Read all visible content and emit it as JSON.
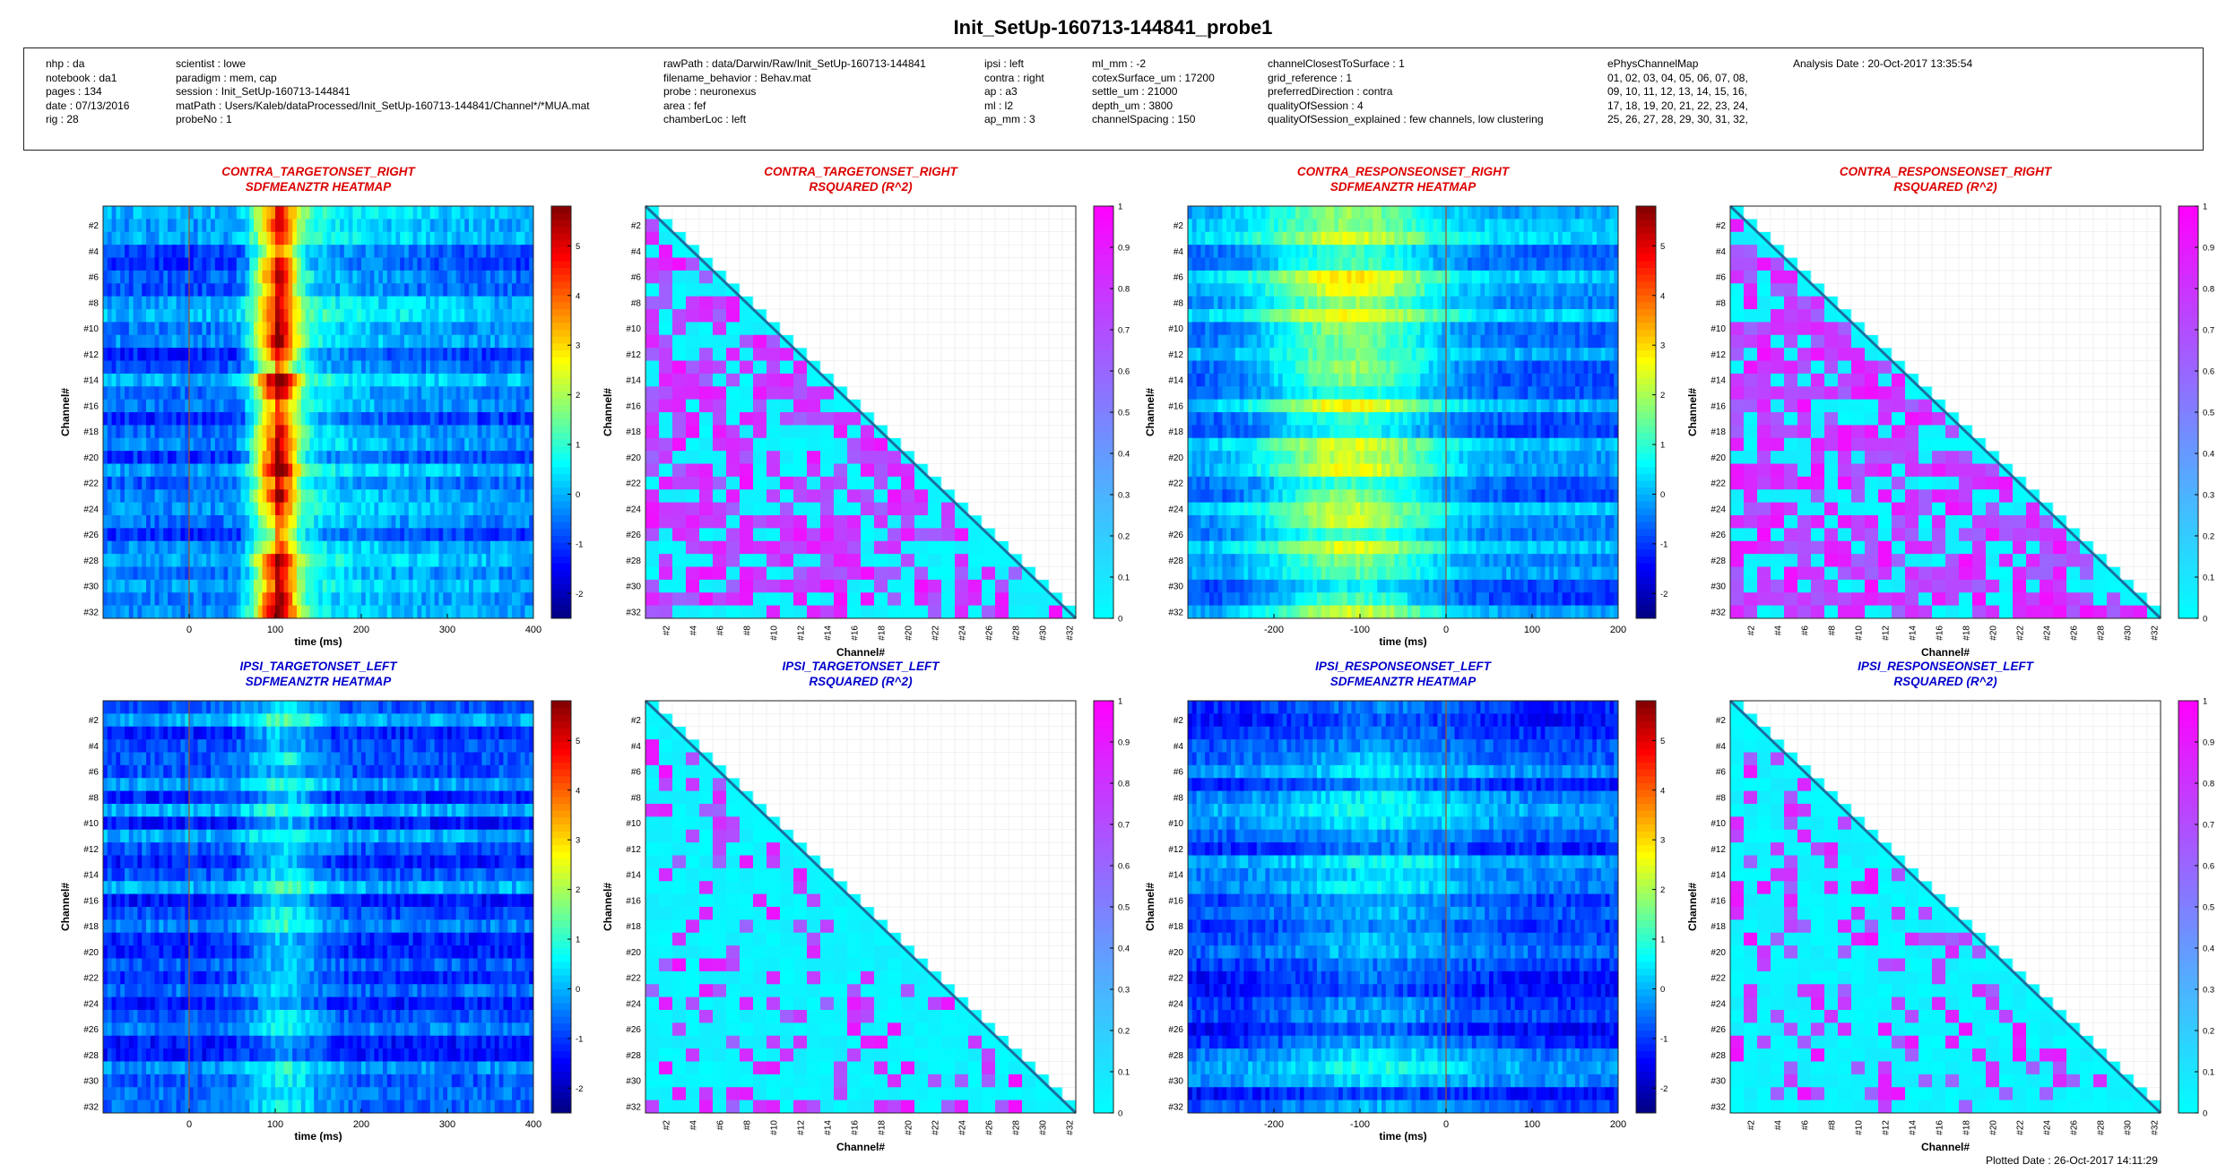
{
  "title": "Init_SetUp-160713-144841_probe1",
  "info": {
    "col1": [
      "nhp : da",
      "notebook : da1",
      "pages : 134",
      "date : 07/13/2016",
      "rig : 28"
    ],
    "col2": [
      "scientist : lowe",
      "paradigm : mem, cap",
      "session : Init_SetUp-160713-144841",
      "matPath : Users/Kaleb/dataProcessed/Init_SetUp-160713-144841/Channel*/*MUA.mat",
      "probeNo : 1"
    ],
    "col3": [
      "rawPath : data/Darwin/Raw/Init_SetUp-160713-144841",
      "filename_behavior : Behav.mat",
      "probe : neuronexus",
      "area : fef",
      "chamberLoc : left"
    ],
    "col4": [
      "ipsi : left",
      "contra : right",
      "ap : a3",
      "ml : l2",
      "ap_mm : 3"
    ],
    "col5": [
      "ml_mm : -2",
      "cotexSurface_um : 17200",
      "settle_um : 21000",
      "depth_um : 3800",
      "channelSpacing : 150"
    ],
    "col6": [
      "channelClosestToSurface : 1",
      "grid_reference : 1",
      "preferredDirection : contra",
      "qualityOfSession : 4",
      "qualityOfSession_explained : few channels, low clustering"
    ],
    "col7": [
      "ePhysChannelMap",
      "01, 02, 03, 04, 05, 06, 07, 08,",
      "09, 10, 11, 12, 13, 14, 15, 16,",
      "17, 18, 19, 20, 21, 22, 23, 24,",
      "25, 26, 27, 28, 29, 30, 31, 32,"
    ],
    "col8": [
      "Analysis Date : 20-Oct-2017 13:35:54"
    ]
  },
  "plotted_date": "Plotted Date : 26-Oct-2017 14:11:29",
  "colors": {
    "contra_title": "#dd0000",
    "ipsi_title": "#0000cc",
    "rsq_low": "#00ffff",
    "rsq_high": "#ff00ff"
  },
  "chart_data": [
    {
      "id": "p1",
      "type": "heatmap",
      "title": [
        "CONTRA_TARGETONSET_RIGHT",
        "SDFMEANZTR HEATMAP"
      ],
      "group": "contra",
      "xlabel": "time (ms)",
      "ylabel": "Channel#",
      "xlim": [
        -100,
        400
      ],
      "xticks": [
        0,
        100,
        200,
        300,
        400
      ],
      "onset_line_x": 0,
      "peak_x": 100,
      "profile": "target-strong",
      "yticklabels": [
        "#2",
        "#4",
        "#6",
        "#8",
        "#10",
        "#12",
        "#14",
        "#16",
        "#18",
        "#20",
        "#22",
        "#24",
        "#26",
        "#28",
        "#30",
        "#32"
      ],
      "colorbar": {
        "ticks": [
          -2,
          -1,
          0,
          1,
          2,
          3,
          4,
          5
        ],
        "range": [
          -2.5,
          5.8
        ]
      }
    },
    {
      "id": "p2",
      "type": "heatmap",
      "title": [
        "CONTRA_TARGETONSET_RIGHT",
        "RSQUARED (R^2)"
      ],
      "group": "contra",
      "xlabel": "Channel#",
      "ylabel": "Channel#",
      "matrix": "rsq",
      "density": 0.6,
      "yticklabels": [
        "#2",
        "#4",
        "#6",
        "#8",
        "#10",
        "#12",
        "#14",
        "#16",
        "#18",
        "#20",
        "#22",
        "#24",
        "#26",
        "#28",
        "#30",
        "#32"
      ],
      "xticklabels": [
        "#2",
        "#4",
        "#6",
        "#8",
        "#10",
        "#12",
        "#14",
        "#16",
        "#18",
        "#20",
        "#22",
        "#24",
        "#26",
        "#28",
        "#30",
        "#32"
      ],
      "colorbar": {
        "ticks": [
          0,
          0.1,
          0.2,
          0.3,
          0.4,
          0.5,
          0.6,
          0.7,
          0.8,
          0.9,
          1
        ],
        "range": [
          0,
          1
        ]
      }
    },
    {
      "id": "p3",
      "type": "heatmap",
      "title": [
        "CONTRA_RESPONSEONSET_RIGHT",
        "SDFMEANZTR HEATMAP"
      ],
      "group": "contra",
      "xlabel": "time (ms)",
      "ylabel": "Channel#",
      "xlim": [
        -300,
        200
      ],
      "xticks": [
        -200,
        -100,
        0,
        100,
        200
      ],
      "onset_line_x": 0,
      "peak_x": -110,
      "profile": "response-broad",
      "yticklabels": [
        "#2",
        "#4",
        "#6",
        "#8",
        "#10",
        "#12",
        "#14",
        "#16",
        "#18",
        "#20",
        "#22",
        "#24",
        "#26",
        "#28",
        "#30",
        "#32"
      ],
      "colorbar": {
        "ticks": [
          -2,
          -1,
          0,
          1,
          2,
          3,
          4,
          5
        ],
        "range": [
          -2.5,
          5.8
        ]
      }
    },
    {
      "id": "p4",
      "type": "heatmap",
      "title": [
        "CONTRA_RESPONSEONSET_RIGHT",
        "RSQUARED (R^2)"
      ],
      "group": "contra",
      "xlabel": "Channel#",
      "ylabel": "Channel#",
      "matrix": "rsq",
      "density": 0.7,
      "yticklabels": [
        "#2",
        "#4",
        "#6",
        "#8",
        "#10",
        "#12",
        "#14",
        "#16",
        "#18",
        "#20",
        "#22",
        "#24",
        "#26",
        "#28",
        "#30",
        "#32"
      ],
      "xticklabels": [
        "#2",
        "#4",
        "#6",
        "#8",
        "#10",
        "#12",
        "#14",
        "#16",
        "#18",
        "#20",
        "#22",
        "#24",
        "#26",
        "#28",
        "#30",
        "#32"
      ],
      "colorbar": {
        "ticks": [
          0,
          0.1,
          0.2,
          0.3,
          0.4,
          0.5,
          0.6,
          0.7,
          0.8,
          0.9,
          1
        ],
        "range": [
          0,
          1
        ]
      }
    },
    {
      "id": "p5",
      "type": "heatmap",
      "title": [
        "IPSI_TARGETONSET_LEFT",
        "SDFMEANZTR HEATMAP"
      ],
      "group": "ipsi",
      "xlabel": "time (ms)",
      "ylabel": "Channel#",
      "xlim": [
        -100,
        400
      ],
      "xticks": [
        0,
        100,
        200,
        300,
        400
      ],
      "onset_line_x": 0,
      "peak_x": 110,
      "profile": "weak",
      "yticklabels": [
        "#2",
        "#4",
        "#6",
        "#8",
        "#10",
        "#12",
        "#14",
        "#16",
        "#18",
        "#20",
        "#22",
        "#24",
        "#26",
        "#28",
        "#30",
        "#32"
      ],
      "colorbar": {
        "ticks": [
          -2,
          -1,
          0,
          1,
          2,
          3,
          4,
          5
        ],
        "range": [
          -2.5,
          5.8
        ]
      }
    },
    {
      "id": "p6",
      "type": "heatmap",
      "title": [
        "IPSI_TARGETONSET_LEFT",
        "RSQUARED (R^2)"
      ],
      "group": "ipsi",
      "xlabel": "Channel#",
      "ylabel": "Channel#",
      "matrix": "rsq",
      "density": 0.2,
      "yticklabels": [
        "#2",
        "#4",
        "#6",
        "#8",
        "#10",
        "#12",
        "#14",
        "#16",
        "#18",
        "#20",
        "#22",
        "#24",
        "#26",
        "#28",
        "#30",
        "#32"
      ],
      "xticklabels": [
        "#2",
        "#4",
        "#6",
        "#8",
        "#10",
        "#12",
        "#14",
        "#16",
        "#18",
        "#20",
        "#22",
        "#24",
        "#26",
        "#28",
        "#30",
        "#32"
      ],
      "colorbar": {
        "ticks": [
          0,
          0.1,
          0.2,
          0.3,
          0.4,
          0.5,
          0.6,
          0.7,
          0.8,
          0.9,
          1
        ],
        "range": [
          0,
          1
        ]
      }
    },
    {
      "id": "p7",
      "type": "heatmap",
      "title": [
        "IPSI_RESPONSEONSET_LEFT",
        "SDFMEANZTR HEATMAP"
      ],
      "group": "ipsi",
      "xlabel": "time (ms)",
      "ylabel": "Channel#",
      "xlim": [
        -300,
        200
      ],
      "xticks": [
        -200,
        -100,
        0,
        100,
        200
      ],
      "onset_line_x": 0,
      "peak_x": -80,
      "profile": "weak-flat",
      "yticklabels": [
        "#2",
        "#4",
        "#6",
        "#8",
        "#10",
        "#12",
        "#14",
        "#16",
        "#18",
        "#20",
        "#22",
        "#24",
        "#26",
        "#28",
        "#30",
        "#32"
      ],
      "colorbar": {
        "ticks": [
          -2,
          -1,
          0,
          1,
          2,
          3,
          4,
          5
        ],
        "range": [
          -2.5,
          5.8
        ]
      }
    },
    {
      "id": "p8",
      "type": "heatmap",
      "title": [
        "IPSI_RESPONSEONSET_LEFT",
        "RSQUARED (R^2)"
      ],
      "group": "ipsi",
      "xlabel": "Channel#",
      "ylabel": "Channel#",
      "matrix": "rsq",
      "density": 0.25,
      "yticklabels": [
        "#2",
        "#4",
        "#6",
        "#8",
        "#10",
        "#12",
        "#14",
        "#16",
        "#18",
        "#20",
        "#22",
        "#24",
        "#26",
        "#28",
        "#30",
        "#32"
      ],
      "xticklabels": [
        "#2",
        "#4",
        "#6",
        "#8",
        "#10",
        "#12",
        "#14",
        "#16",
        "#18",
        "#20",
        "#22",
        "#24",
        "#26",
        "#28",
        "#30",
        "#32"
      ],
      "colorbar": {
        "ticks": [
          0,
          0.1,
          0.2,
          0.3,
          0.4,
          0.5,
          0.6,
          0.7,
          0.8,
          0.9,
          1
        ],
        "range": [
          0,
          1
        ]
      }
    }
  ]
}
